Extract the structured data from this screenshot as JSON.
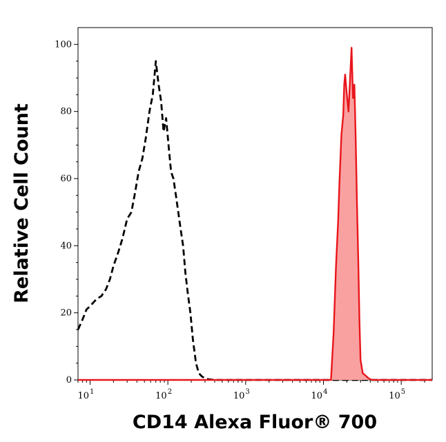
{
  "chart_data": {
    "type": "area",
    "title": "",
    "xlabel": "CD14 Alexa Fluor® 700",
    "ylabel": "Relative Cell Count",
    "xscale": "log",
    "xlim": [
      7,
      250000
    ],
    "ylim": [
      0,
      105
    ],
    "yticks": [
      0,
      20,
      40,
      60,
      80,
      100
    ],
    "xticks": [
      {
        "value": 10,
        "base": "10",
        "exp": "1"
      },
      {
        "value": 100,
        "base": "10",
        "exp": "2"
      },
      {
        "value": 1000,
        "base": "10",
        "exp": "3"
      },
      {
        "value": 10000,
        "base": "10",
        "exp": "4"
      },
      {
        "value": 100000,
        "base": "10",
        "exp": "5"
      }
    ],
    "grid": false,
    "legend": "none",
    "series": [
      {
        "style": "dashed",
        "color": "#000000",
        "fill": "none",
        "x": [
          7,
          8,
          9,
          10,
          12,
          14,
          16,
          18,
          20,
          23,
          26,
          30,
          34,
          38,
          42,
          47,
          52,
          58,
          64,
          70,
          76,
          82,
          88,
          95,
          102,
          110,
          118,
          127,
          136,
          146,
          157,
          168,
          180,
          195,
          210,
          230,
          250,
          275,
          300,
          330,
          400,
          1000,
          10000,
          100000,
          250000
        ],
        "y": [
          15,
          18,
          21,
          22,
          24,
          25,
          27,
          30,
          34,
          38,
          42,
          48,
          50,
          56,
          62,
          66,
          72,
          80,
          85,
          95,
          88,
          83,
          74,
          78,
          70,
          62,
          60,
          55,
          50,
          45,
          40,
          32,
          26,
          20,
          12,
          5,
          2,
          1,
          0.5,
          0.2,
          0,
          0,
          0,
          0,
          0
        ]
      },
      {
        "style": "solid",
        "color": "#e8151b",
        "fill": "#f9a1a0",
        "x": [
          7,
          100,
          1000,
          10000,
          12500,
          13500,
          14500,
          15500,
          16000,
          17000,
          18000,
          18500,
          19000,
          20000,
          21000,
          22000,
          23000,
          24000,
          25000,
          26000,
          27000,
          28000,
          29000,
          30000,
          32000,
          34000,
          36000,
          38000,
          40000,
          43000,
          46000,
          50000,
          55000,
          70000,
          250000
        ],
        "y": [
          0,
          0,
          0,
          0,
          0,
          14,
          34,
          48,
          58,
          73,
          79,
          88,
          91,
          85,
          80,
          90,
          99,
          84,
          88,
          72,
          52,
          36,
          18,
          6,
          2,
          1.5,
          1,
          0.5,
          0.2,
          0,
          0,
          0,
          0,
          0,
          0
        ]
      }
    ]
  }
}
